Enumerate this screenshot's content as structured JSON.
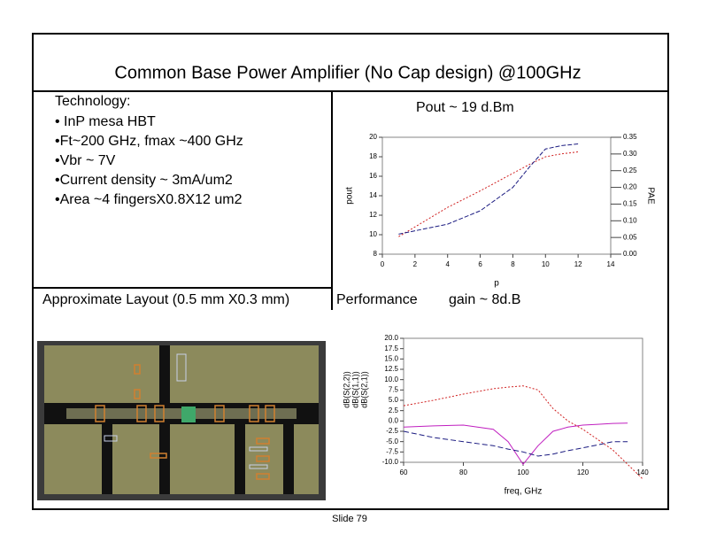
{
  "title": "Common Base Power Amplifier   (No Cap design) @100GHz",
  "technology": {
    "heading": "Technology:",
    "items": [
      "• InP mesa HBT",
      "•Ft~200 GHz, fmax ~400 GHz",
      "•Vbr ~ 7V",
      "•Current density ~ 3mA/um2",
      "•Area ~4 fingersX0.8X12 um2"
    ]
  },
  "layout_caption": "Approximate Layout (0.5 mm X0.3 mm)",
  "footer": "Slide 79",
  "chart_data": [
    {
      "type": "line",
      "title": "Pout ~ 19 d.Bm",
      "x_label": "p",
      "y_label": "pout",
      "y2_label": "PAE",
      "x": [
        1,
        2,
        4,
        6,
        8,
        9,
        10,
        11,
        12
      ],
      "series": [
        {
          "name": "pout",
          "color": "#d02020",
          "dash": "2,2",
          "values": [
            9.8,
            10.8,
            12.8,
            14.5,
            16.3,
            17.2,
            18.0,
            18.3,
            18.5
          ]
        },
        {
          "name": "PAE",
          "color": "#1a1a80",
          "dash": "5,2",
          "axis": "y2",
          "values": [
            0.06,
            0.07,
            0.09,
            0.13,
            0.2,
            0.26,
            0.315,
            0.325,
            0.33
          ]
        }
      ],
      "xlim": [
        0,
        14
      ],
      "xticks": [
        0,
        2,
        4,
        6,
        8,
        10,
        12,
        14
      ],
      "ylim": [
        8,
        20
      ],
      "yticks": [
        8,
        10,
        12,
        14,
        16,
        18,
        20
      ],
      "y2lim": [
        0,
        0.35
      ],
      "y2ticks": [
        {
          "value": 0,
          "label": "0.00"
        },
        {
          "value": 0.05,
          "label": "0.05"
        },
        {
          "value": 0.1,
          "label": "0.10"
        },
        {
          "value": 0.15,
          "label": "0.15"
        },
        {
          "value": 0.2,
          "label": "0.20"
        },
        {
          "value": 0.25,
          "label": "0.25"
        },
        {
          "value": 0.3,
          "label": "0.30"
        },
        {
          "value": 0.35,
          "label": "0.35"
        }
      ]
    },
    {
      "type": "line",
      "title": "Performance",
      "subtitle": "gain ~ 8d.B",
      "x_label": "freq, GHz",
      "x": [
        60,
        70,
        80,
        90,
        95,
        100,
        105,
        110,
        115,
        120,
        125,
        130,
        135,
        140
      ],
      "series": [
        {
          "name": "dB(S(2,2))",
          "color": "#c020c0",
          "dash": "",
          "values": [
            -1.5,
            -1.2,
            -1,
            -2,
            -5,
            -10.5,
            -6,
            -2.5,
            -1.5,
            -1,
            -0.8,
            -0.6,
            -0.5,
            null
          ]
        },
        {
          "name": "dB(S(1,1))",
          "color": "#1a1a80",
          "dash": "6,3",
          "values": [
            -2.5,
            -4,
            -5,
            -6,
            -6.8,
            -7.5,
            -8.5,
            -8,
            -7.2,
            -6.5,
            -5.8,
            -5,
            -5,
            null
          ]
        },
        {
          "name": "dB(S(2,1))",
          "color": "#d02020",
          "dash": "2,2",
          "values": [
            3.7,
            5,
            6.5,
            7.8,
            8.2,
            8.5,
            7.5,
            3,
            0,
            -2,
            -4.5,
            -7,
            -10.5,
            -14
          ]
        }
      ],
      "xlim": [
        60,
        140
      ],
      "xticks": [
        60,
        80,
        100,
        120,
        140
      ],
      "ylim": [
        -10,
        20
      ],
      "yticks": [
        {
          "value": -10,
          "label": "-10.0"
        },
        {
          "value": -7.5,
          "label": "-7.5"
        },
        {
          "value": -5,
          "label": "-5.0"
        },
        {
          "value": -2.5,
          "label": "-2.5"
        },
        {
          "value": 0,
          "label": "0.0"
        },
        {
          "value": 2.5,
          "label": "2.5"
        },
        {
          "value": 5,
          "label": "5.0"
        },
        {
          "value": 7.5,
          "label": "7.5"
        },
        {
          "value": 10,
          "label": "10.0"
        },
        {
          "value": 12.5,
          "label": "12.5"
        },
        {
          "value": 15,
          "label": "15.0"
        },
        {
          "value": 17.5,
          "label": "17.5"
        },
        {
          "value": 20,
          "label": "20.0"
        }
      ]
    }
  ]
}
